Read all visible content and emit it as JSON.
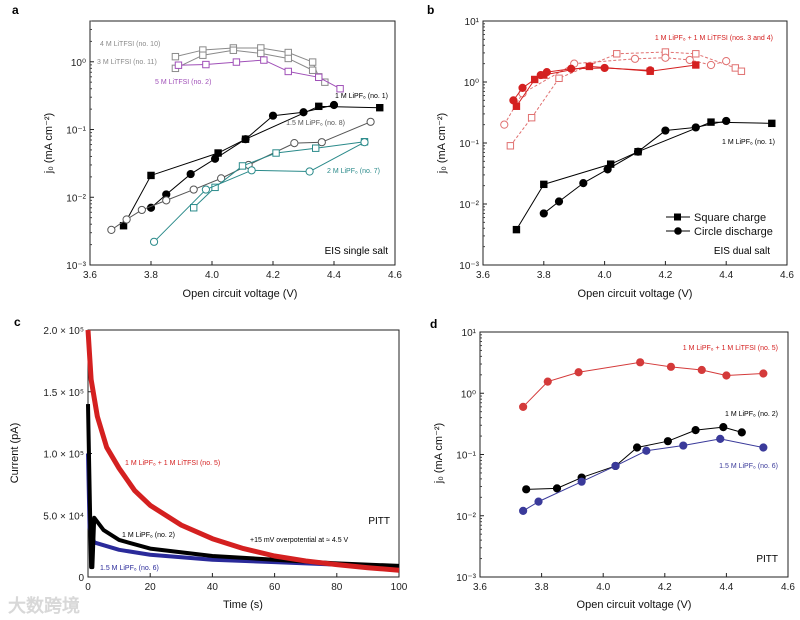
{
  "watermark": "大数跨境",
  "chart_data": [
    {
      "panel": "a",
      "type": "line",
      "yscale": "log",
      "xlabel": "Open circuit voltage (V)",
      "ylabel": "j₀ (mA cm⁻²)",
      "xlim": [
        3.6,
        4.6
      ],
      "ylim": [
        0.001,
        4
      ],
      "xticks": [
        "3.6",
        "3.8",
        "4.0",
        "4.2",
        "4.4",
        "4.6"
      ],
      "yticks": [
        {
          "v": -3,
          "label": "10⁻³"
        },
        {
          "v": -2,
          "label": "10⁻²"
        },
        {
          "v": -1,
          "label": "10⁻¹"
        },
        {
          "v": 0,
          "label": "10⁰"
        }
      ],
      "annotations": [
        "4 M LiTFSI (no. 10)",
        "3 M LiTFSI (no. 11)",
        "5 M LiTFSI (no. 2)",
        "1 M LiPF₆ (no. 1)",
        "1.5 M LiPF₆ (no. 8)",
        "2 M LiPF₆ (no. 7)",
        "EIS single salt"
      ],
      "series": [
        {
          "name": "4 M LiTFSI (no. 10)",
          "color": "#8a8a8a",
          "marker": "square",
          "filled": false,
          "points": [
            [
              3.88,
              1.19
            ],
            [
              3.97,
              1.49
            ],
            [
              4.07,
              1.6
            ],
            [
              4.16,
              1.6
            ],
            [
              4.25,
              1.37
            ],
            [
              4.33,
              0.99
            ],
            [
              4.35,
              0.6
            ]
          ]
        },
        {
          "name": "3 M LiTFSI (no. 11)",
          "color": "#8a8a8a",
          "marker": "square",
          "filled": false,
          "points": [
            [
              3.88,
              0.8
            ],
            [
              3.97,
              1.25
            ],
            [
              4.07,
              1.48
            ],
            [
              4.16,
              1.33
            ],
            [
              4.25,
              1.12
            ],
            [
              4.33,
              0.75
            ],
            [
              4.37,
              0.5
            ]
          ]
        },
        {
          "name": "5 M LiTFSI (no. 2)",
          "color": "#a050b8",
          "marker": "square",
          "filled": false,
          "points": [
            [
              3.89,
              0.89
            ],
            [
              3.98,
              0.91
            ],
            [
              4.08,
              0.99
            ],
            [
              4.17,
              1.06
            ],
            [
              4.25,
              0.72
            ],
            [
              4.35,
              0.59
            ],
            [
              4.42,
              0.4
            ]
          ]
        },
        {
          "name": "1 M LiPF₆ (no. 1) charge",
          "color": "#000000",
          "marker": "square",
          "filled": true,
          "points": [
            [
              3.71,
              0.0038
            ],
            [
              3.8,
              0.021
            ],
            [
              4.02,
              0.045
            ],
            [
              4.11,
              0.072
            ],
            [
              4.35,
              0.22
            ],
            [
              4.55,
              0.21
            ]
          ]
        },
        {
          "name": "1 M LiPF₆ (no. 1) discharge",
          "color": "#000000",
          "marker": "circle",
          "filled": true,
          "points": [
            [
              3.8,
              0.007
            ],
            [
              3.85,
              0.011
            ],
            [
              3.93,
              0.022
            ],
            [
              4.01,
              0.037
            ],
            [
              4.11,
              0.072
            ],
            [
              4.2,
              0.16
            ],
            [
              4.3,
              0.18
            ],
            [
              4.4,
              0.23
            ]
          ]
        },
        {
          "name": "1.5 M LiPF₆ (no. 8)",
          "color": "#555555",
          "marker": "circle",
          "filled": false,
          "points": [
            [
              3.67,
              0.0033
            ],
            [
              3.72,
              0.0047
            ],
            [
              3.77,
              0.0065
            ],
            [
              3.85,
              0.009
            ],
            [
              3.94,
              0.013
            ],
            [
              4.03,
              0.019
            ],
            [
              4.12,
              0.03
            ],
            [
              4.27,
              0.063
            ],
            [
              4.36,
              0.065
            ],
            [
              4.52,
              0.13
            ]
          ]
        },
        {
          "name": "2 M LiPF₆ (no. 7) charge",
          "color": "#2a8a8a",
          "marker": "square",
          "filled": false,
          "points": [
            [
              3.94,
              0.007
            ],
            [
              4.01,
              0.014
            ],
            [
              4.1,
              0.029
            ],
            [
              4.21,
              0.045
            ],
            [
              4.34,
              0.053
            ],
            [
              4.5,
              0.066
            ]
          ]
        },
        {
          "name": "2 M LiPF₆ (no. 7) discharge",
          "color": "#2a8a8a",
          "marker": "circle",
          "filled": false,
          "points": [
            [
              3.81,
              0.0022
            ],
            [
              3.98,
              0.013
            ],
            [
              4.13,
              0.025
            ],
            [
              4.32,
              0.024
            ],
            [
              4.5,
              0.065
            ]
          ]
        }
      ]
    },
    {
      "panel": "b",
      "type": "line",
      "yscale": "log",
      "xlabel": "Open circuit voltage (V)",
      "ylabel": "j₀ (mA cm⁻²)",
      "xlim": [
        3.6,
        4.6
      ],
      "ylim": [
        0.001,
        10
      ],
      "xticks": [
        "3.6",
        "3.8",
        "4.0",
        "4.2",
        "4.4",
        "4.6"
      ],
      "yticks": [
        {
          "v": -3,
          "label": "10⁻³"
        },
        {
          "v": -2,
          "label": "10⁻²"
        },
        {
          "v": -1,
          "label": "10⁻¹"
        },
        {
          "v": 0,
          "label": "10⁰"
        },
        {
          "v": 1,
          "label": "10¹"
        }
      ],
      "annotations": [
        "1 M LiPF₆ + 1 M LiTFSI (nos. 3 and 4)",
        "1 M LiPF₆ (no. 1)",
        "EIS dual salt"
      ],
      "legend": {
        "position": "bottom-right",
        "entries": [
          "Square charge",
          "Circle discharge"
        ]
      },
      "series": [
        {
          "name": "dual no. 4 charge",
          "color": "#e07070",
          "marker": "square",
          "filled": false,
          "dashed": true,
          "points": [
            [
              3.69,
              0.09
            ],
            [
              3.76,
              0.26
            ],
            [
              3.85,
              1.15
            ],
            [
              4.04,
              2.9
            ],
            [
              4.2,
              3.1
            ],
            [
              4.3,
              2.9
            ],
            [
              4.43,
              1.7
            ],
            [
              4.45,
              1.5
            ]
          ]
        },
        {
          "name": "dual no. 4 discharge",
          "color": "#e07070",
          "marker": "circle",
          "filled": false,
          "dashed": true,
          "points": [
            [
              3.67,
              0.2
            ],
            [
              3.73,
              0.65
            ],
            [
              3.9,
              2.0
            ],
            [
              4.1,
              2.4
            ],
            [
              4.2,
              2.5
            ],
            [
              4.28,
              2.3
            ],
            [
              4.35,
              1.9
            ],
            [
              4.4,
              2.2
            ]
          ]
        },
        {
          "name": "dual no. 3 charge",
          "color": "#d42020",
          "marker": "square",
          "filled": true,
          "points": [
            [
              3.71,
              0.4
            ],
            [
              3.77,
              1.1
            ],
            [
              3.8,
              1.3
            ],
            [
              3.95,
              1.8
            ],
            [
              4.15,
              1.5
            ],
            [
              4.3,
              1.9
            ]
          ]
        },
        {
          "name": "dual no. 3 discharge",
          "color": "#d42020",
          "marker": "circle",
          "filled": true,
          "points": [
            [
              3.7,
              0.5
            ],
            [
              3.73,
              0.8
            ],
            [
              3.79,
              1.3
            ],
            [
              3.81,
              1.45
            ],
            [
              3.89,
              1.65
            ],
            [
              4.0,
              1.7
            ],
            [
              4.15,
              1.55
            ]
          ]
        },
        {
          "name": "1 M LiPF₆ (no. 1) charge",
          "color": "#000000",
          "marker": "square",
          "filled": true,
          "points": [
            [
              3.71,
              0.0038
            ],
            [
              3.8,
              0.021
            ],
            [
              4.02,
              0.045
            ],
            [
              4.11,
              0.072
            ],
            [
              4.35,
              0.22
            ],
            [
              4.55,
              0.21
            ]
          ]
        },
        {
          "name": "1 M LiPF₆ (no. 1) discharge",
          "color": "#000000",
          "marker": "circle",
          "filled": true,
          "points": [
            [
              3.8,
              0.007
            ],
            [
              3.85,
              0.011
            ],
            [
              3.93,
              0.022
            ],
            [
              4.01,
              0.037
            ],
            [
              4.11,
              0.072
            ],
            [
              4.2,
              0.16
            ],
            [
              4.3,
              0.18
            ],
            [
              4.4,
              0.23
            ]
          ]
        }
      ]
    },
    {
      "panel": "c",
      "type": "line",
      "yscale": "linear",
      "xlabel": "Time (s)",
      "ylabel": "Current (pA)",
      "xlim": [
        0,
        100
      ],
      "ylim": [
        0,
        200000
      ],
      "xticks": [
        "0",
        "20",
        "40",
        "60",
        "80",
        "100"
      ],
      "yticks": [
        {
          "v": 0,
          "label": "0"
        },
        {
          "v": 50000,
          "label": "5.0 × 10⁴"
        },
        {
          "v": 100000,
          "label": "1.0 × 10⁵"
        },
        {
          "v": 150000,
          "label": "1.5 × 10⁵"
        },
        {
          "v": 200000,
          "label": "2.0 × 10⁵"
        }
      ],
      "annotations": [
        "1 M LiPF₆ + 1 M LiTFSI (no. 5)",
        "1 M LiPF₆ (no. 2)",
        "+15 mV overpotential at ≈ 4.5 V",
        "1.5 M LiPF₆ (no. 6)",
        "PITT"
      ],
      "series": [
        {
          "name": "1.5 M LiPF₆ (no. 6)",
          "color": "#2a2a9a",
          "points": [
            [
              0,
              100000
            ],
            [
              0.5,
              40000
            ],
            [
              2,
              28000
            ],
            [
              10,
              22000
            ],
            [
              20,
              18000
            ],
            [
              40,
              14000
            ],
            [
              60,
              12000
            ],
            [
              80,
              10000
            ],
            [
              100,
              8500
            ]
          ]
        },
        {
          "name": "1 M LiPF₆ (no. 2)",
          "color": "#000000",
          "points": [
            [
              0,
              140000
            ],
            [
              0.6,
              60000
            ],
            [
              1,
              8000
            ],
            [
              1.4,
              8000
            ],
            [
              2,
              48000
            ],
            [
              5,
              38000
            ],
            [
              10,
              30000
            ],
            [
              20,
              23000
            ],
            [
              40,
              17000
            ],
            [
              60,
              14000
            ],
            [
              80,
              11000
            ],
            [
              100,
              9000
            ]
          ]
        },
        {
          "name": "1 M LiPF₆ + 1 M LiTFSI (no. 5)",
          "color": "#d42020",
          "points": [
            [
              0,
              200000
            ],
            [
              1,
              160000
            ],
            [
              3,
              130000
            ],
            [
              6,
              105000
            ],
            [
              10,
              88000
            ],
            [
              15,
              70000
            ],
            [
              20,
              58000
            ],
            [
              25,
              50000
            ],
            [
              30,
              42000
            ],
            [
              40,
              31000
            ],
            [
              50,
              23000
            ],
            [
              60,
              17000
            ],
            [
              70,
              13000
            ],
            [
              80,
              10000
            ],
            [
              90,
              7500
            ],
            [
              100,
              5500
            ]
          ]
        }
      ]
    },
    {
      "panel": "d",
      "type": "line",
      "yscale": "log",
      "xlabel": "Open circuit voltage (V)",
      "ylabel": "j₀ (mA cm⁻²)",
      "xlim": [
        3.6,
        4.6
      ],
      "ylim": [
        0.001,
        10
      ],
      "xticks": [
        "3.6",
        "3.8",
        "4.0",
        "4.2",
        "4.4",
        "4.6"
      ],
      "yticks": [
        {
          "v": -3,
          "label": "10⁻³"
        },
        {
          "v": -2,
          "label": "10⁻²"
        },
        {
          "v": -1,
          "label": "10⁻¹"
        },
        {
          "v": 0,
          "label": "10⁰"
        },
        {
          "v": 1,
          "label": "10¹"
        }
      ],
      "annotations": [
        "1 M LiPF₆ + 1 M LiTFSI (no. 5)",
        "1 M LiPF₆ (no. 2)",
        "1.5 M LiPF₆ (no. 6)",
        "PITT"
      ],
      "series": [
        {
          "name": "1 M LiPF₆ + 1 M LiTFSI (no. 5)",
          "color": "#d43a3a",
          "marker": "circle",
          "filled": true,
          "points": [
            [
              3.74,
              0.6
            ],
            [
              3.82,
              1.55
            ],
            [
              3.92,
              2.2
            ],
            [
              4.12,
              3.2
            ],
            [
              4.22,
              2.7
            ],
            [
              4.32,
              2.4
            ],
            [
              4.4,
              1.95
            ],
            [
              4.52,
              2.1
            ]
          ]
        },
        {
          "name": "1 M LiPF₆ (no. 2)",
          "color": "#000000",
          "marker": "circle",
          "filled": true,
          "points": [
            [
              3.75,
              0.027
            ],
            [
              3.85,
              0.028
            ],
            [
              3.93,
              0.042
            ],
            [
              4.04,
              0.065
            ],
            [
              4.11,
              0.13
            ],
            [
              4.21,
              0.165
            ],
            [
              4.3,
              0.25
            ],
            [
              4.39,
              0.28
            ],
            [
              4.45,
              0.23
            ]
          ]
        },
        {
          "name": "1.5 M LiPF₆ (no. 6)",
          "color": "#3a3a9a",
          "marker": "circle",
          "filled": true,
          "points": [
            [
              3.74,
              0.012
            ],
            [
              3.79,
              0.017
            ],
            [
              3.93,
              0.036
            ],
            [
              4.04,
              0.065
            ],
            [
              4.14,
              0.115
            ],
            [
              4.26,
              0.14
            ],
            [
              4.38,
              0.18
            ],
            [
              4.52,
              0.13
            ]
          ]
        }
      ]
    }
  ]
}
